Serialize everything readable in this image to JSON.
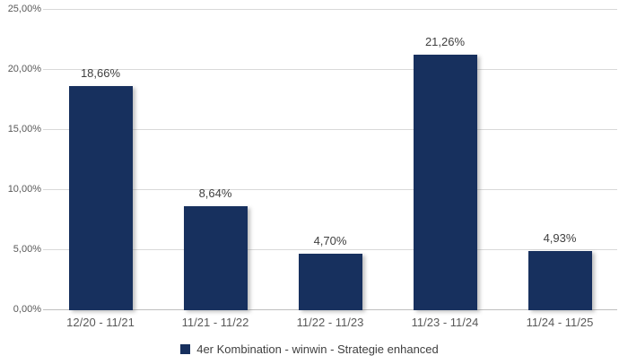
{
  "chart_data": {
    "type": "bar",
    "categories": [
      "12/20 - 11/21",
      "11/21 - 11/22",
      "11/22 - 11/23",
      "11/23 - 11/24",
      "11/24 - 11/25"
    ],
    "values": [
      18.66,
      8.64,
      4.7,
      21.26,
      4.93
    ],
    "value_labels": [
      "18,66%",
      "8,64%",
      "4,70%",
      "21,26%",
      "4,93%"
    ],
    "y_ticks": [
      {
        "value": 25,
        "label": "25,00%"
      },
      {
        "value": 20,
        "label": "20,00%"
      },
      {
        "value": 15,
        "label": "15,00%"
      },
      {
        "value": 10,
        "label": "10,00%"
      },
      {
        "value": 5,
        "label": "5,00%"
      },
      {
        "value": 0,
        "label": "0,00%"
      }
    ],
    "ylim": [
      0,
      25
    ],
    "grid": true,
    "legend_position": "bottom",
    "legend": "4er Kombination - winwin - Strategie enhanced",
    "title": "",
    "xlabel": "",
    "ylabel": "",
    "colors": {
      "bar": "#17305e",
      "gridline": "#d9d9d9",
      "axis_line": "#bfbfbf",
      "value_label": "#404040",
      "tick_label": "#595959",
      "legend_text": "#404040",
      "background": "#ffffff"
    }
  }
}
